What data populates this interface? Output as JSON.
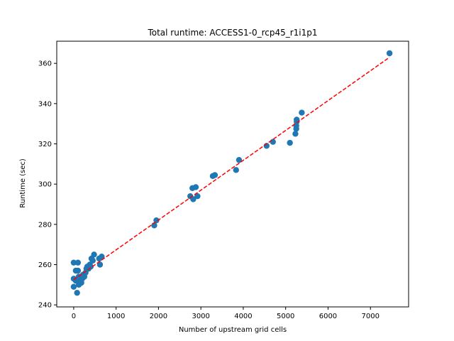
{
  "chart_data": {
    "type": "scatter",
    "title": "Total runtime: ACCESS1-0_rcp45_r1i1p1",
    "xlabel": "Number of upstream grid cells",
    "ylabel": "Runtime (sec)",
    "xlim": [
      -400,
      7900
    ],
    "ylim": [
      239,
      371
    ],
    "xticks": [
      0,
      1000,
      2000,
      3000,
      4000,
      5000,
      6000,
      7000
    ],
    "yticks": [
      240,
      260,
      280,
      300,
      320,
      340,
      360
    ],
    "grid": false,
    "point_color": "#1f77b4",
    "fit_line_color": "#ff0000",
    "fit_line": {
      "x": [
        0,
        7450
      ],
      "y": [
        252.5,
        363
      ]
    },
    "points": [
      {
        "x": 0,
        "y": 261
      },
      {
        "x": 0,
        "y": 253
      },
      {
        "x": 0,
        "y": 249
      },
      {
        "x": 50,
        "y": 257
      },
      {
        "x": 50,
        "y": 252
      },
      {
        "x": 80,
        "y": 246
      },
      {
        "x": 100,
        "y": 261
      },
      {
        "x": 100,
        "y": 257
      },
      {
        "x": 120,
        "y": 254
      },
      {
        "x": 120,
        "y": 250
      },
      {
        "x": 150,
        "y": 252
      },
      {
        "x": 180,
        "y": 251
      },
      {
        "x": 200,
        "y": 253
      },
      {
        "x": 220,
        "y": 255
      },
      {
        "x": 250,
        "y": 254
      },
      {
        "x": 280,
        "y": 256
      },
      {
        "x": 300,
        "y": 258
      },
      {
        "x": 320,
        "y": 259
      },
      {
        "x": 350,
        "y": 258
      },
      {
        "x": 380,
        "y": 260
      },
      {
        "x": 400,
        "y": 259
      },
      {
        "x": 420,
        "y": 263
      },
      {
        "x": 450,
        "y": 262
      },
      {
        "x": 480,
        "y": 265
      },
      {
        "x": 600,
        "y": 263
      },
      {
        "x": 620,
        "y": 260
      },
      {
        "x": 660,
        "y": 264
      },
      {
        "x": 1900,
        "y": 279.5
      },
      {
        "x": 1950,
        "y": 282
      },
      {
        "x": 2750,
        "y": 294
      },
      {
        "x": 2800,
        "y": 298
      },
      {
        "x": 2820,
        "y": 292.5
      },
      {
        "x": 2880,
        "y": 298.5
      },
      {
        "x": 2920,
        "y": 294
      },
      {
        "x": 3280,
        "y": 304
      },
      {
        "x": 3330,
        "y": 304.5
      },
      {
        "x": 3830,
        "y": 307
      },
      {
        "x": 3900,
        "y": 312
      },
      {
        "x": 4550,
        "y": 319
      },
      {
        "x": 4700,
        "y": 321
      },
      {
        "x": 5100,
        "y": 320.5
      },
      {
        "x": 5230,
        "y": 325
      },
      {
        "x": 5250,
        "y": 327.5
      },
      {
        "x": 5250,
        "y": 329
      },
      {
        "x": 5260,
        "y": 331
      },
      {
        "x": 5260,
        "y": 332
      },
      {
        "x": 5380,
        "y": 335.5
      },
      {
        "x": 7450,
        "y": 365
      }
    ]
  }
}
